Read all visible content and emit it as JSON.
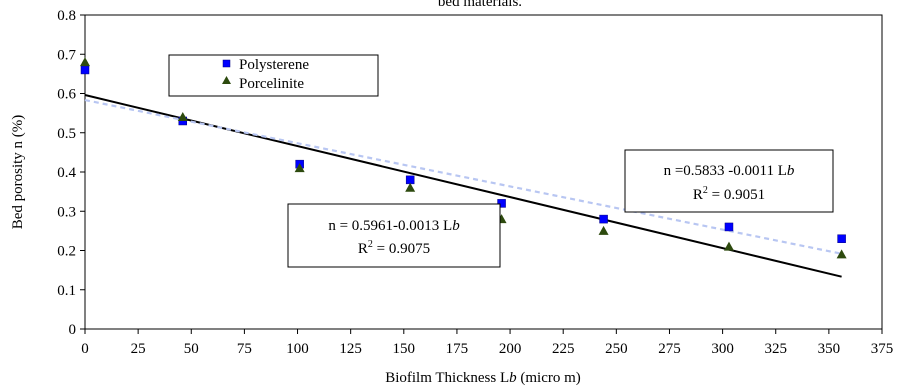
{
  "chart_data": {
    "type": "scatter",
    "title": "bed materials.",
    "xlabel": "Biofilm Thickness Lb  (micro m)",
    "ylabel": "Bed porosity n (%)",
    "xlim": [
      0,
      375
    ],
    "ylim": [
      0,
      0.8
    ],
    "xticks": [
      0,
      25,
      50,
      75,
      100,
      125,
      150,
      175,
      200,
      225,
      250,
      275,
      300,
      325,
      350,
      375
    ],
    "yticks": [
      0,
      0.1,
      0.2,
      0.3,
      0.4,
      0.5,
      0.6,
      0.7,
      0.8
    ],
    "ytick_labels": [
      "0",
      "0.1",
      "0.2",
      "0.3",
      "0.4",
      "0.5",
      "0.6",
      "0.7",
      "0.8"
    ],
    "grid": false,
    "legend": "top-left",
    "series": [
      {
        "name": "Polysterene",
        "marker": "square",
        "color": "#0000ff",
        "x": [
          0,
          46,
          101,
          153,
          196,
          244,
          303,
          356
        ],
        "y": [
          0.66,
          0.53,
          0.42,
          0.38,
          0.32,
          0.28,
          0.26,
          0.23
        ]
      },
      {
        "name": "Porcelinite",
        "marker": "triangle",
        "color": "#2d4a0e",
        "x": [
          0,
          46,
          101,
          153,
          196,
          244,
          303,
          356
        ],
        "y": [
          0.68,
          0.54,
          0.41,
          0.36,
          0.28,
          0.25,
          0.21,
          0.19
        ]
      }
    ],
    "trendlines": [
      {
        "style": "solid",
        "color": "#000000",
        "intercept": 0.5961,
        "slope": -0.0013,
        "x_range": [
          0,
          356
        ],
        "equation": "n = 0.5961-0.0013 Lb",
        "r2": "R2 = 0.9075"
      },
      {
        "style": "dashed",
        "color": "#b8c6f2",
        "intercept": 0.5833,
        "slope": -0.0011,
        "x_range": [
          0,
          356
        ],
        "equation": "n =0.5833 -0.0011 Lb",
        "r2": "R2 = 0.9051"
      }
    ]
  }
}
